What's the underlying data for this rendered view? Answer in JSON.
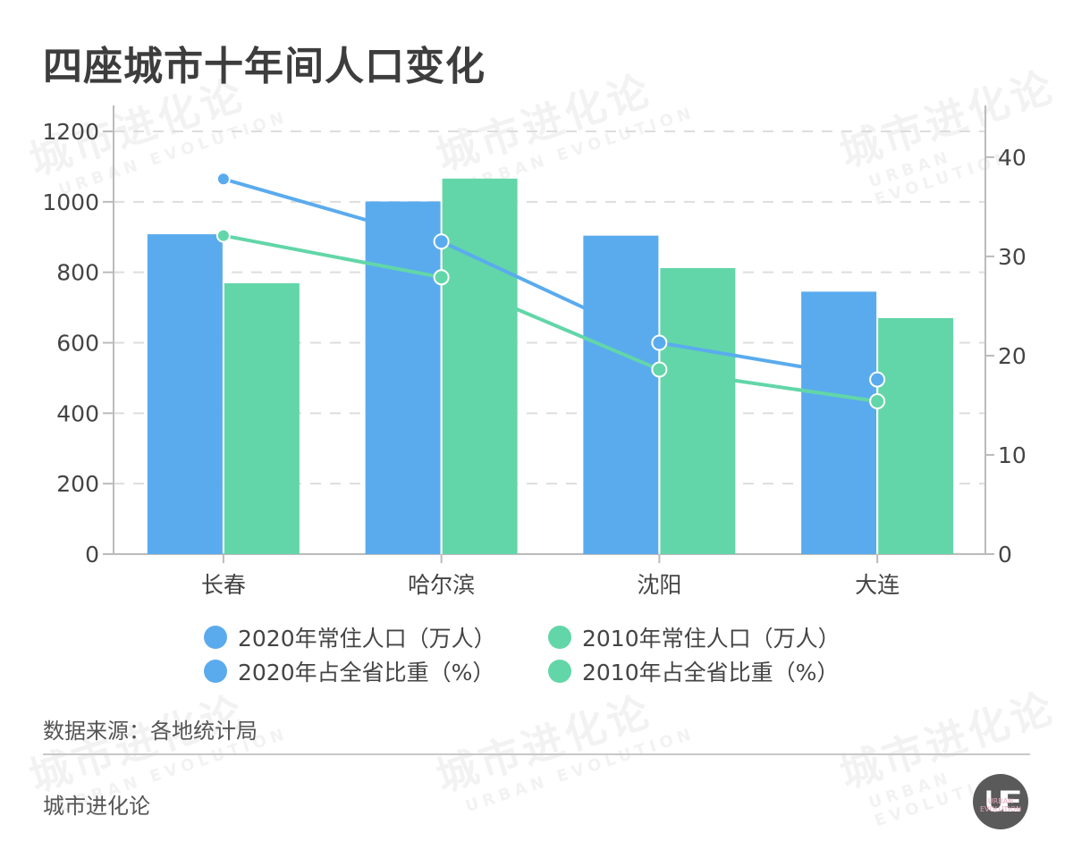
{
  "title": "四座城市十年间人口变化",
  "source": "数据来源：各地统计局",
  "brand": "城市进化论",
  "logo": {
    "mark": "UE",
    "sub": "URBAN EVOLUTION"
  },
  "watermark": {
    "cn": "城市进化论",
    "en": "URBAN EVOLUTION"
  },
  "colors": {
    "blue": "#5aabee",
    "green": "#62d6a8",
    "grid": "#dddddd",
    "axis": "#bbbbbb",
    "text": "#444444"
  },
  "legend": [
    {
      "label": "2020年常住人口（万人）",
      "color": "#5aabee"
    },
    {
      "label": "2010年常住人口（万人）",
      "color": "#62d6a8"
    },
    {
      "label": "2020年占全省比重（%）",
      "color": "#5aabee"
    },
    {
      "label": "2010年占全省比重（%）",
      "color": "#62d6a8"
    }
  ],
  "chart_data": {
    "type": "bar",
    "title": "四座城市十年间人口变化",
    "categories": [
      "长春",
      "哈尔滨",
      "沈阳",
      "大连"
    ],
    "series": [
      {
        "name": "2020年常住人口（万人）",
        "type": "bar",
        "axis": "left",
        "values": [
          908,
          1001,
          904,
          745
        ]
      },
      {
        "name": "2010年常住人口（万人）",
        "type": "bar",
        "axis": "left",
        "values": [
          769,
          1066,
          812,
          670
        ]
      },
      {
        "name": "2020年占全省比重（%）",
        "type": "line",
        "axis": "right",
        "values": [
          37.8,
          31.5,
          21.3,
          17.6
        ]
      },
      {
        "name": "2010年占全省比重（%）",
        "type": "line",
        "axis": "right",
        "values": [
          32.1,
          27.9,
          18.6,
          15.4
        ]
      }
    ],
    "y_left": {
      "ticks": [
        0,
        200,
        400,
        600,
        800,
        1000,
        1200
      ],
      "range": [
        0,
        1200
      ]
    },
    "y_right": {
      "ticks": [
        0,
        10,
        20,
        30,
        40
      ],
      "range": [
        0,
        42.6
      ]
    },
    "xlabel": "",
    "ylabel": "",
    "grid": true,
    "legend_position": "bottom"
  }
}
